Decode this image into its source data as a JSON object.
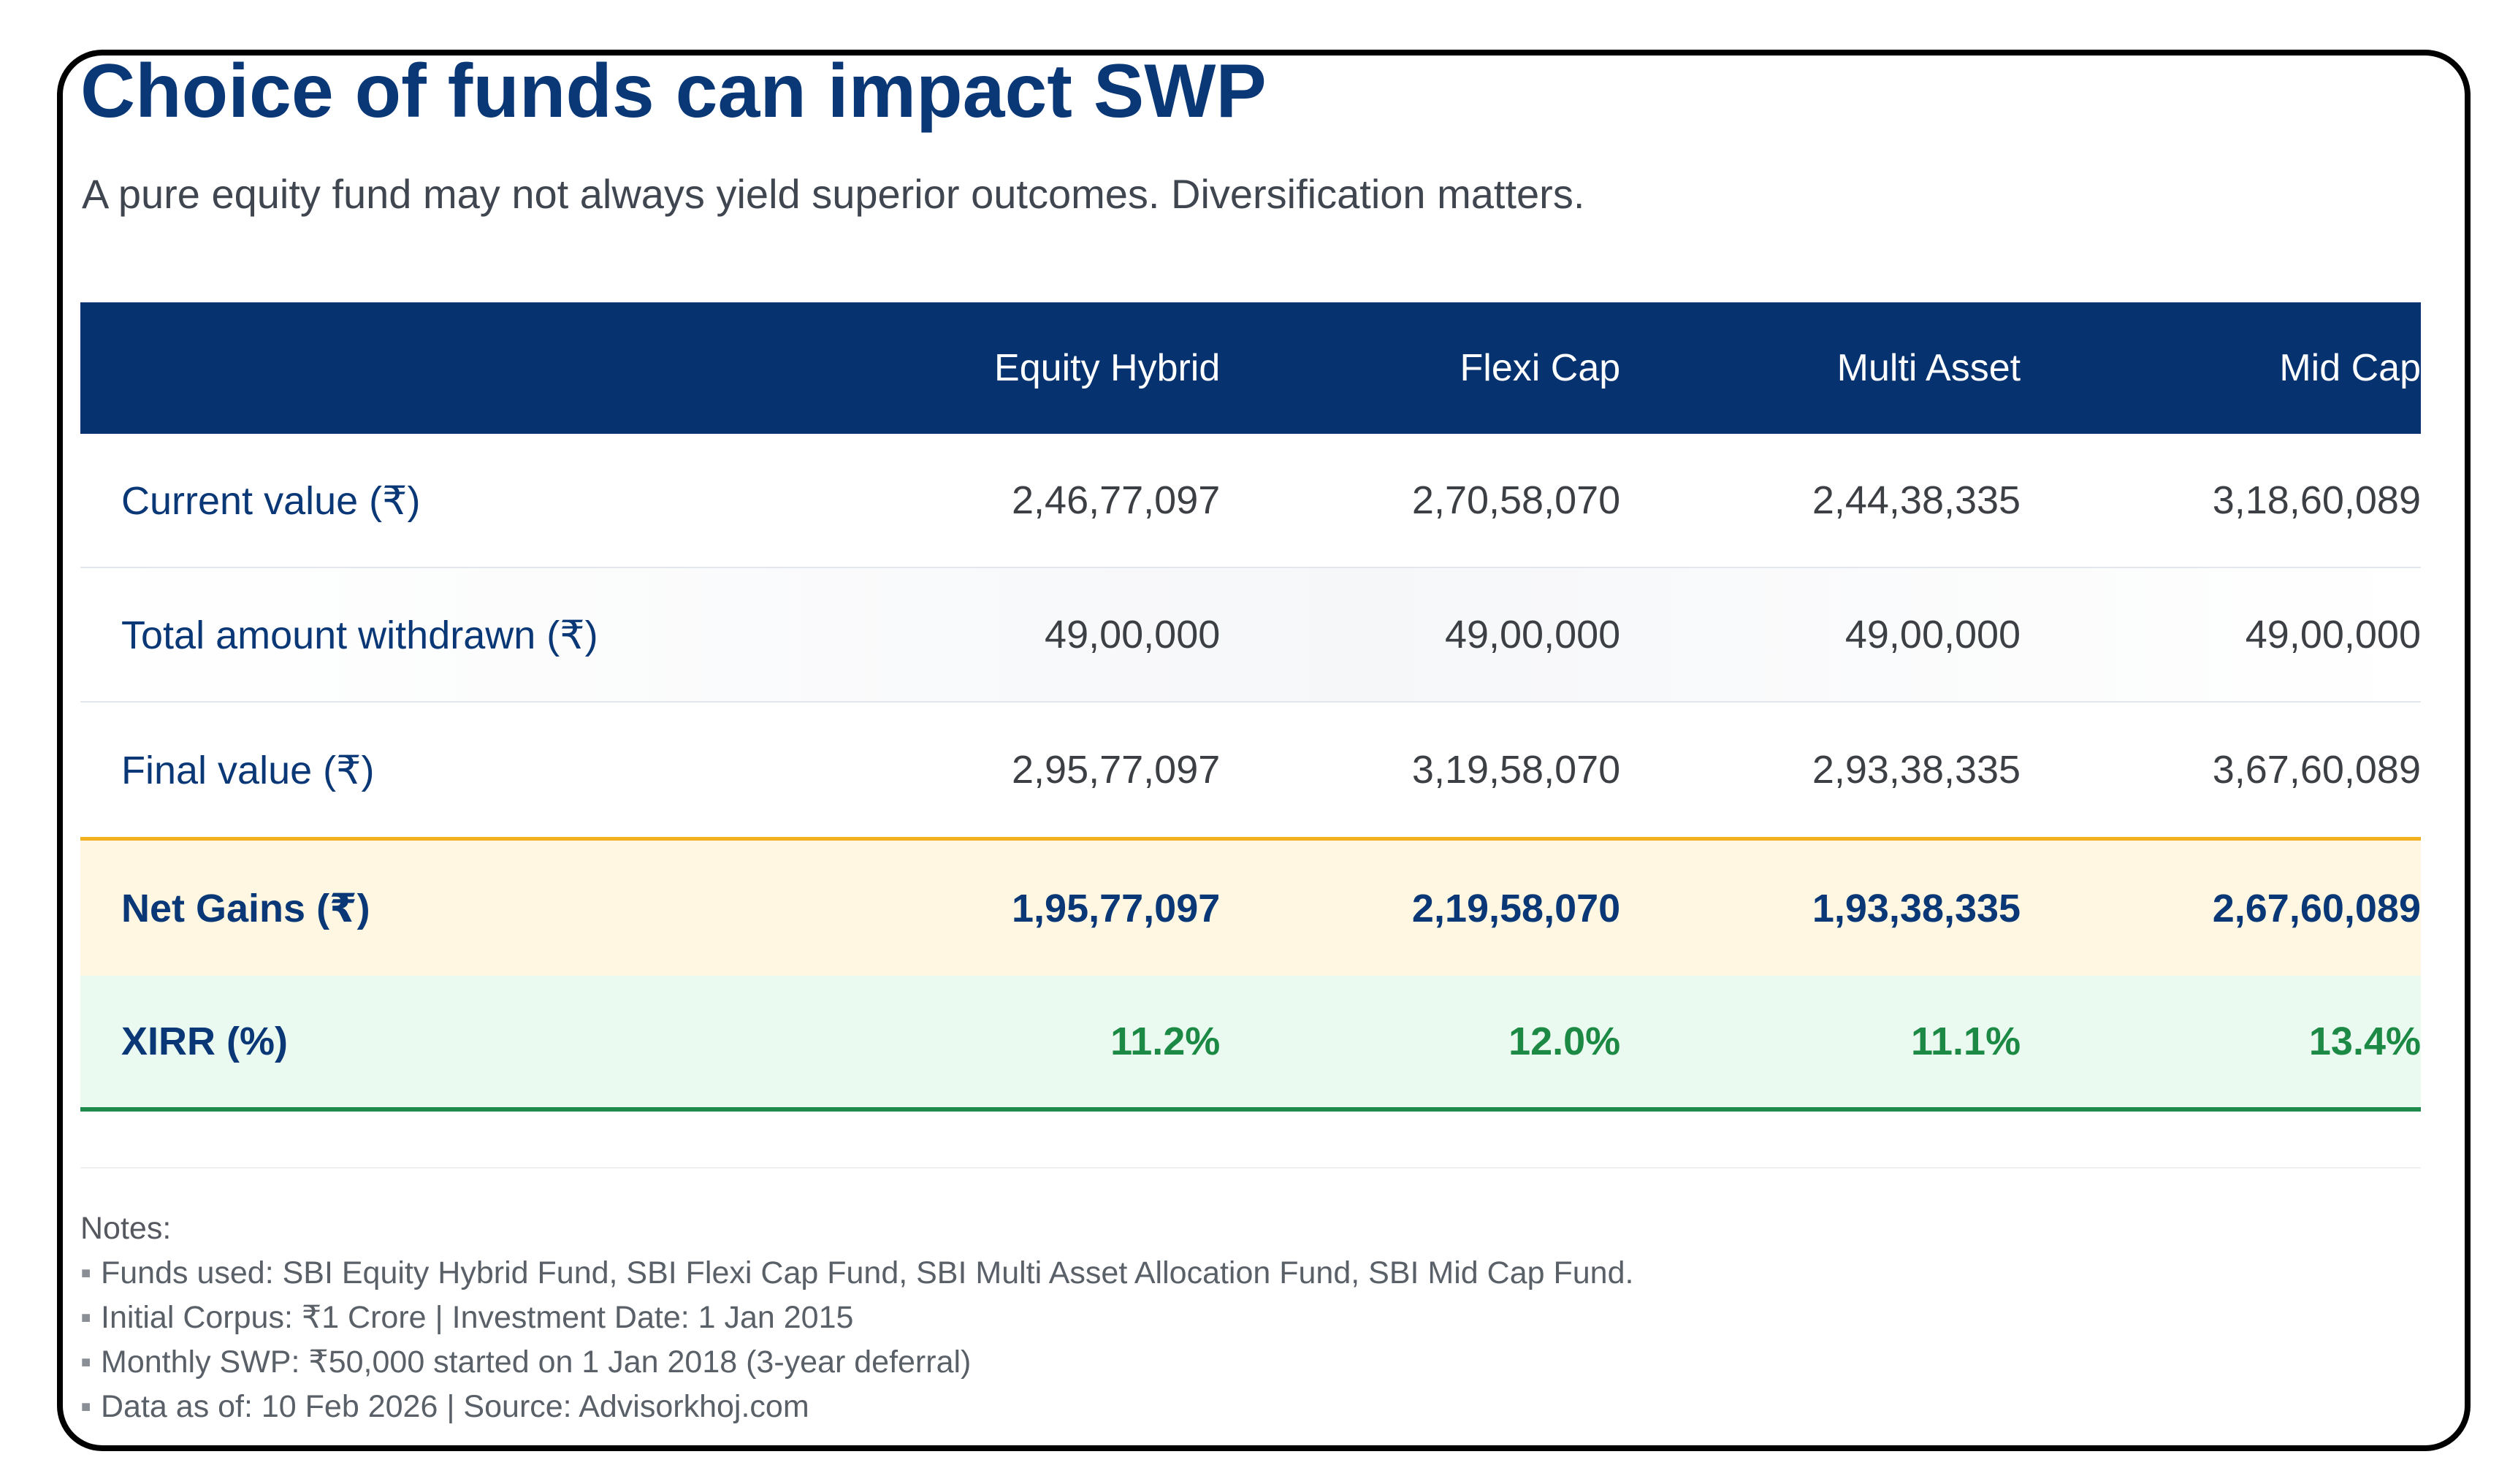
{
  "title": "Choice of funds can impact SWP",
  "subtitle": "A pure equity fund may not always yield superior outcomes. Diversification matters.",
  "table": {
    "columns": [
      "",
      "Equity Hybrid",
      "Flexi Cap",
      "Multi Asset",
      "Mid Cap"
    ],
    "rows": [
      {
        "label": "Current value (₹)",
        "values": [
          "2,46,77,097",
          "2,70,58,070",
          "2,44,38,335",
          "3,18,60,089"
        ]
      },
      {
        "label": "Total amount withdrawn (₹)",
        "values": [
          "49,00,000",
          "49,00,000",
          "49,00,000",
          "49,00,000"
        ]
      },
      {
        "label": "Final value (₹)",
        "values": [
          "2,95,77,097",
          "3,19,58,070",
          "2,93,38,335",
          "3,67,60,089"
        ]
      },
      {
        "label": "Net Gains (₹)",
        "values": [
          "1,95,77,097",
          "2,19,58,070",
          "1,93,38,335",
          "2,67,60,089"
        ]
      },
      {
        "label": "XIRR (%)",
        "values": [
          "11.2%",
          "12.0%",
          "11.1%",
          "13.4%"
        ]
      }
    ]
  },
  "notes": {
    "title": "Notes:",
    "bullet": "▪",
    "items": [
      "Funds used: SBI Equity Hybrid Fund, SBI Flexi Cap Fund, SBI Multi Asset Allocation Fund, SBI Mid Cap Fund.",
      "Initial Corpus: ₹1 Crore | Investment Date: 1 Jan 2015",
      "Monthly SWP: ₹50,000 started on 1 Jan 2018 (3-year deferral)",
      "Data as of: 10 Feb 2026 | Source: Advisorkhoj.com"
    ]
  },
  "colors": {
    "header_bg": "#063270",
    "title": "#0a3877",
    "net_gains_bg": "#fff7e2",
    "net_gains_border": "#f2b01e",
    "xirr_bg": "#eafaf0",
    "xirr_value": "#1c8a44",
    "xirr_border": "#1e8a4c"
  }
}
